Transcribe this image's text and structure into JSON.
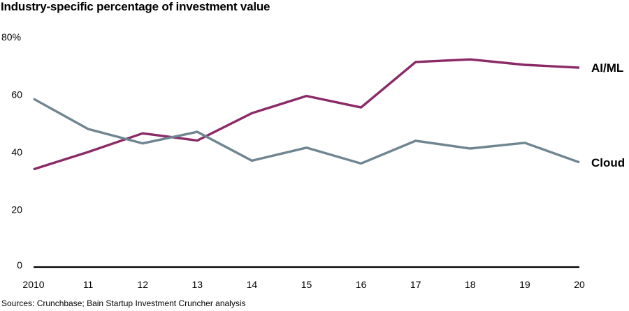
{
  "chart_data": {
    "type": "line",
    "title": "Industry-specific percentage of investment value",
    "xlabel": "",
    "ylabel": "",
    "x": [
      "2010",
      "11",
      "12",
      "13",
      "14",
      "15",
      "16",
      "17",
      "18",
      "19",
      "20"
    ],
    "ylim": [
      0,
      80
    ],
    "yticks": [
      0,
      20,
      40,
      60,
      80
    ],
    "ytick_labels": [
      "0",
      "20",
      "40",
      "60",
      "80%"
    ],
    "grid": false,
    "legend": "inline-right",
    "series": [
      {
        "name": "AI/ML",
        "color": "#8b2a66",
        "values": [
          34,
          40,
          46.5,
          44,
          53.5,
          59.5,
          55.5,
          71.3,
          72.2,
          70.3,
          69.3
        ]
      },
      {
        "name": "Cloud",
        "color": "#6f8591",
        "values": [
          58.5,
          48,
          43,
          47,
          37,
          41.5,
          36,
          43.9,
          41.2,
          43.2,
          36.4
        ]
      }
    ],
    "source": "Sources: Crunchbase; Bain Startup Investment Cruncher analysis"
  }
}
